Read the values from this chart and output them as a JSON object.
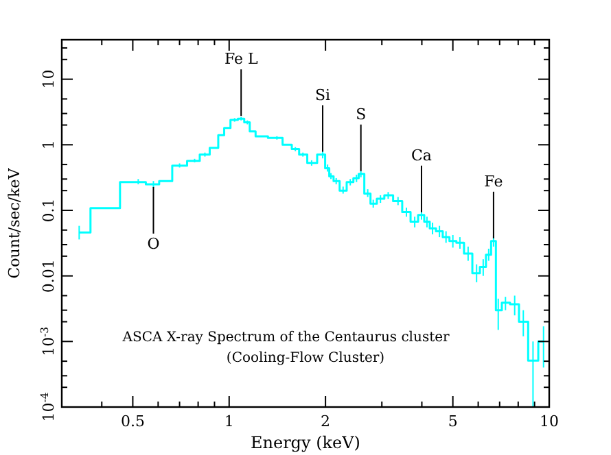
{
  "chart_data": {
    "type": "step",
    "title": "ASCA X-ray Spectrum of the Centaurus cluster",
    "subtitle": "(Cooling-Flow Cluster)",
    "xlabel": "Energy (keV)",
    "ylabel": "Count/sec/keV",
    "log": "xy",
    "grid": false,
    "marker": "none",
    "line_style": "solid",
    "xlim": [
      0.3,
      10
    ],
    "ylim": [
      0.0001,
      40
    ],
    "xticks": [
      {
        "value": 0.3,
        "label": null
      },
      {
        "value": 0.4,
        "label": null
      },
      0.5,
      {
        "value": 0.6,
        "label": null
      },
      {
        "value": 0.7,
        "label": null
      },
      {
        "value": 0.8,
        "label": null
      },
      {
        "value": 0.9,
        "label": null
      },
      1,
      2,
      {
        "value": 3,
        "label": null
      },
      {
        "value": 4,
        "label": null
      },
      5,
      {
        "value": 6,
        "label": null
      },
      {
        "value": 7,
        "label": null
      },
      {
        "value": 8,
        "label": null
      },
      {
        "value": 9,
        "label": null
      },
      10
    ],
    "yticks": [
      {
        "value": 0.0001,
        "label": "10$^{-4}$"
      },
      {
        "value": 0.0002,
        "label": null
      },
      {
        "value": 0.0003,
        "label": null
      },
      {
        "value": 0.0005,
        "label": null
      },
      {
        "value": 0.001,
        "label": "10$^{-3}$"
      },
      {
        "value": 0.002,
        "label": null
      },
      {
        "value": 0.003,
        "label": null
      },
      {
        "value": 0.005,
        "label": null
      },
      0.01,
      {
        "value": 0.02,
        "label": null
      },
      {
        "value": 0.03,
        "label": null
      },
      {
        "value": 0.05,
        "label": null
      },
      0.1,
      {
        "value": 0.2,
        "label": null
      },
      {
        "value": 0.3,
        "label": null
      },
      {
        "value": 0.5,
        "label": null
      },
      1,
      {
        "value": 2,
        "label": null
      },
      {
        "value": 3,
        "label": null
      },
      {
        "value": 5,
        "label": null
      },
      10,
      {
        "value": 20,
        "label": null
      },
      {
        "value": 30,
        "label": null
      }
    ],
    "series": [
      {
        "color": "#00ffff",
        "x": [
          0.34,
          0.4,
          0.52,
          0.58,
          0.63,
          0.7,
          0.78,
          0.84,
          0.9,
          0.95,
          0.98,
          1.04,
          1.09,
          1.14,
          1.18,
          1.24,
          1.41,
          1.53,
          1.61,
          1.7,
          1.81,
          1.96,
          2.03,
          2.08,
          2.16,
          2.27,
          2.39,
          2.5,
          2.58,
          2.71,
          2.82,
          2.97,
          3.14,
          3.37,
          3.58,
          3.8,
          3.99,
          4.15,
          4.32,
          4.54,
          4.76,
          5.0,
          5.26,
          5.58,
          5.93,
          6.22,
          6.47,
          6.7,
          6.93,
          7.3,
          7.8,
          8.3,
          8.9,
          9.6
        ],
        "values": [
          0.046,
          0.108,
          0.27,
          0.25,
          0.28,
          0.48,
          0.57,
          0.71,
          0.9,
          1.4,
          1.8,
          2.4,
          2.5,
          2.2,
          1.6,
          1.34,
          1.27,
          1.0,
          0.86,
          0.71,
          0.53,
          0.71,
          0.44,
          0.33,
          0.28,
          0.2,
          0.27,
          0.31,
          0.36,
          0.18,
          0.126,
          0.15,
          0.17,
          0.138,
          0.094,
          0.067,
          0.085,
          0.067,
          0.053,
          0.048,
          0.039,
          0.034,
          0.032,
          0.022,
          0.011,
          0.0137,
          0.021,
          0.034,
          0.003,
          0.0039,
          0.0037,
          0.002,
          0.00051,
          0.001
        ],
        "errors": [
          [
            0.036,
            0.058
          ],
          null,
          [
            0.25,
            0.3
          ],
          [
            0.22,
            0.28
          ],
          null,
          [
            0.45,
            0.52
          ],
          [
            0.54,
            0.61
          ],
          [
            0.66,
            0.76
          ],
          null,
          null,
          null,
          [
            2.25,
            2.55
          ],
          [
            2.35,
            2.65
          ],
          [
            2.05,
            2.35
          ],
          null,
          null,
          [
            1.2,
            1.35
          ],
          null,
          [
            0.8,
            0.92
          ],
          [
            0.66,
            0.76
          ],
          [
            0.48,
            0.58
          ],
          [
            0.62,
            0.8
          ],
          [
            0.39,
            0.5
          ],
          [
            0.3,
            0.37
          ],
          [
            0.25,
            0.31
          ],
          [
            0.18,
            0.23
          ],
          [
            0.24,
            0.3
          ],
          [
            0.27,
            0.35
          ],
          [
            0.32,
            0.4
          ],
          [
            0.16,
            0.21
          ],
          [
            0.11,
            0.145
          ],
          [
            0.13,
            0.17
          ],
          [
            0.15,
            0.19
          ],
          [
            0.12,
            0.16
          ],
          [
            0.08,
            0.11
          ],
          [
            0.055,
            0.08
          ],
          [
            0.072,
            0.1
          ],
          [
            0.055,
            0.08
          ],
          [
            0.043,
            0.065
          ],
          [
            0.039,
            0.058
          ],
          [
            0.032,
            0.048
          ],
          [
            0.027,
            0.042
          ],
          [
            0.026,
            0.039
          ],
          [
            0.017,
            0.028
          ],
          [
            0.008,
            0.015
          ],
          [
            0.01,
            0.018
          ],
          [
            0.017,
            0.026
          ],
          [
            0.028,
            0.04
          ],
          [
            0.0015,
            0.0045
          ],
          [
            0.003,
            0.0048
          ],
          [
            0.0025,
            0.005
          ],
          [
            0.0012,
            0.003
          ],
          [
            0.0001,
            0.001
          ],
          [
            0.0004,
            0.0017
          ]
        ]
      }
    ],
    "annotations": [
      {
        "text": "O",
        "x": 0.58,
        "y": 0.25
      },
      {
        "text": "Fe L",
        "x": 1.09,
        "y": 2.5
      },
      {
        "text": "Si",
        "x": 1.96,
        "y": 0.71
      },
      {
        "text": "S",
        "x": 2.58,
        "y": 0.36
      },
      {
        "text": "Ca",
        "x": 3.99,
        "y": 0.085
      },
      {
        "text": "Fe",
        "x": 6.7,
        "y": 0.034
      }
    ]
  }
}
